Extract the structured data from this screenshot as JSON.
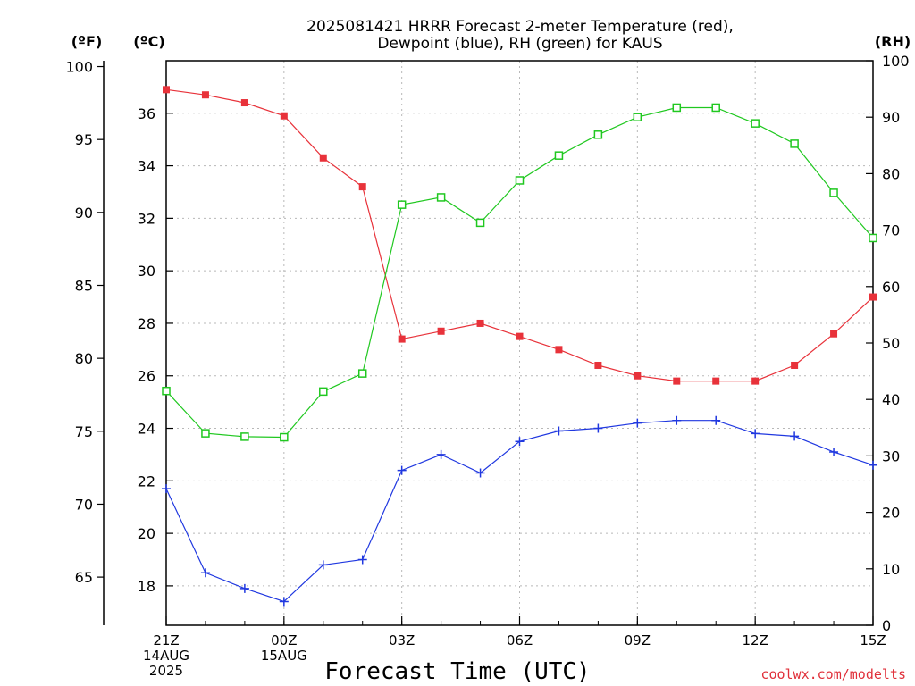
{
  "chart_data": {
    "type": "line",
    "title_line1": "2025081421 HRRR Forecast 2-meter Temperature (red),",
    "title_line2": "Dewpoint (blue), RH (green) for KAUS",
    "unit_f": "(ºF)",
    "unit_c": "(ºC)",
    "unit_rh": "(RH)",
    "xlabel": "Forecast Time (UTC)",
    "credit": "coolwx.com/modelts",
    "x_hours": [
      0,
      1,
      2,
      3,
      4,
      5,
      6,
      7,
      8,
      9,
      10,
      11,
      12,
      13,
      14,
      15,
      16,
      17,
      18
    ],
    "x_ticks": [
      {
        "hour": 0,
        "lines": [
          "21Z",
          "14AUG",
          "2025"
        ]
      },
      {
        "hour": 3,
        "lines": [
          "00Z",
          "15AUG"
        ]
      },
      {
        "hour": 6,
        "lines": [
          "03Z"
        ]
      },
      {
        "hour": 9,
        "lines": [
          "06Z"
        ]
      },
      {
        "hour": 12,
        "lines": [
          "09Z"
        ]
      },
      {
        "hour": 15,
        "lines": [
          "12Z"
        ]
      },
      {
        "hour": 18,
        "lines": [
          "15Z"
        ]
      }
    ],
    "c_axis": {
      "ylim": [
        16.5,
        38
      ],
      "ticks": [
        18,
        20,
        22,
        24,
        26,
        28,
        30,
        32,
        34,
        36
      ]
    },
    "f_axis": {
      "ticks": [
        65,
        70,
        75,
        80,
        85,
        90,
        95,
        100
      ]
    },
    "rh_axis": {
      "ylim": [
        0,
        100
      ],
      "ticks": [
        0,
        10,
        20,
        30,
        40,
        50,
        60,
        70,
        80,
        90,
        100
      ]
    },
    "grid": true,
    "series": [
      {
        "name": "Temperature",
        "axis": "C",
        "color": "#e8323a",
        "marker": "filled-square",
        "values": [
          36.9,
          36.7,
          36.4,
          35.9,
          34.3,
          33.2,
          27.4,
          27.7,
          28.0,
          27.5,
          27.0,
          26.4,
          26.0,
          25.8,
          25.8,
          25.8,
          26.4,
          27.6,
          29.0
        ]
      },
      {
        "name": "Dewpoint",
        "axis": "C",
        "color": "#2038e0",
        "marker": "plus",
        "values": [
          21.7,
          18.5,
          17.9,
          17.4,
          18.8,
          19.0,
          22.4,
          23.0,
          22.3,
          23.5,
          23.9,
          24.0,
          24.2,
          24.3,
          24.3,
          23.8,
          23.7,
          23.1,
          22.6
        ]
      },
      {
        "name": "RH",
        "axis": "RH",
        "color": "#20c820",
        "marker": "open-square",
        "values": [
          41.5,
          34.0,
          33.4,
          33.3,
          41.4,
          44.6,
          74.5,
          75.8,
          71.3,
          78.8,
          83.2,
          86.9,
          90.0,
          91.7,
          91.7,
          88.9,
          85.3,
          76.6,
          68.6
        ]
      }
    ]
  }
}
